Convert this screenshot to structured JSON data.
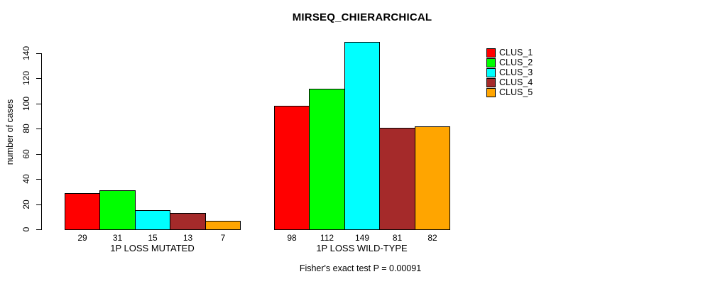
{
  "chart_data": {
    "type": "bar",
    "title": "MIRSEQ_CHIERARCHICAL",
    "ylabel": "number of cases",
    "xlabel": "",
    "footer": "Fisher's exact test P = 0.00091",
    "ylim": [
      0,
      140
    ],
    "yticks": [
      0,
      20,
      40,
      60,
      80,
      100,
      120,
      140
    ],
    "grid": false,
    "legend_position": "top-right",
    "show_bar_values": true,
    "series": [
      {
        "name": "CLUS_1",
        "color": "#FF0000"
      },
      {
        "name": "CLUS_2",
        "color": "#00FF00"
      },
      {
        "name": "CLUS_3",
        "color": "#00FFFF"
      },
      {
        "name": "CLUS_4",
        "color": "#A52A2A"
      },
      {
        "name": "CLUS_5",
        "color": "#FFA500"
      }
    ],
    "groups": [
      {
        "label": "1P LOSS MUTATED",
        "values": [
          29,
          31,
          15,
          13,
          7
        ]
      },
      {
        "label": "1P LOSS WILD-TYPE",
        "values": [
          98,
          112,
          149,
          81,
          82
        ]
      }
    ]
  }
}
